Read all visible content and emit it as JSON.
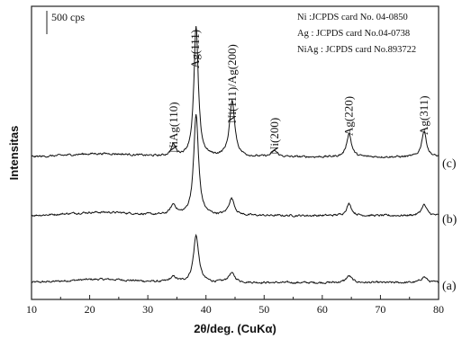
{
  "chart_data": {
    "type": "line",
    "xlabel": "2θ/deg. (CuKα)",
    "ylabel": "Intensitas",
    "xlim": [
      10,
      80
    ],
    "x_ticks": [
      "10",
      "20",
      "30",
      "40",
      "50",
      "60",
      "70",
      "80"
    ],
    "scale_bar_label": "500 cps",
    "legend": [
      "Ni :JCPDS card No. 04-0850",
      "Ag : JCPDS card No.04-0738",
      "NiAg : JCPDS card No.893722"
    ],
    "peak_labels": [
      {
        "text": "NiAg(110)",
        "x": 34.5
      },
      {
        "text": "Ag(111)",
        "x": 38.2
      },
      {
        "text": "Ni(111)/Ag(200)",
        "x": 44.5
      },
      {
        "text": "Ni(200)",
        "x": 51.8
      },
      {
        "text": "Ag(220)",
        "x": 64.6
      },
      {
        "text": "Ag(311)",
        "x": 77.5
      }
    ],
    "series": [
      {
        "name": "(a)",
        "offset": 0,
        "baseline": 0,
        "peaks": [
          {
            "x": 34.4,
            "height": 60,
            "width": 0.7
          },
          {
            "x": 38.3,
            "height": 560,
            "width": 0.55
          },
          {
            "x": 44.4,
            "height": 110,
            "width": 0.7
          },
          {
            "x": 64.6,
            "height": 80,
            "width": 0.6
          },
          {
            "x": 77.5,
            "height": 70,
            "width": 0.6
          }
        ]
      },
      {
        "name": "(b)",
        "offset": 800,
        "baseline": 0,
        "peaks": [
          {
            "x": 34.4,
            "height": 120,
            "width": 0.6
          },
          {
            "x": 38.3,
            "height": 1200,
            "width": 0.5
          },
          {
            "x": 44.4,
            "height": 200,
            "width": 0.6
          },
          {
            "x": 64.6,
            "height": 140,
            "width": 0.55
          },
          {
            "x": 77.5,
            "height": 130,
            "width": 0.55
          }
        ]
      },
      {
        "name": "(c)",
        "offset": 1500,
        "baseline": 0,
        "peaks": [
          {
            "x": 34.4,
            "height": 130,
            "width": 0.5
          },
          {
            "x": 38.3,
            "height": 1550,
            "width": 0.45
          },
          {
            "x": 44.5,
            "height": 660,
            "width": 0.55
          },
          {
            "x": 51.8,
            "height": 70,
            "width": 0.6
          },
          {
            "x": 64.6,
            "height": 280,
            "width": 0.5
          },
          {
            "x": 77.5,
            "height": 310,
            "width": 0.5
          }
        ]
      }
    ],
    "ylim": [
      -200,
      3300
    ]
  }
}
